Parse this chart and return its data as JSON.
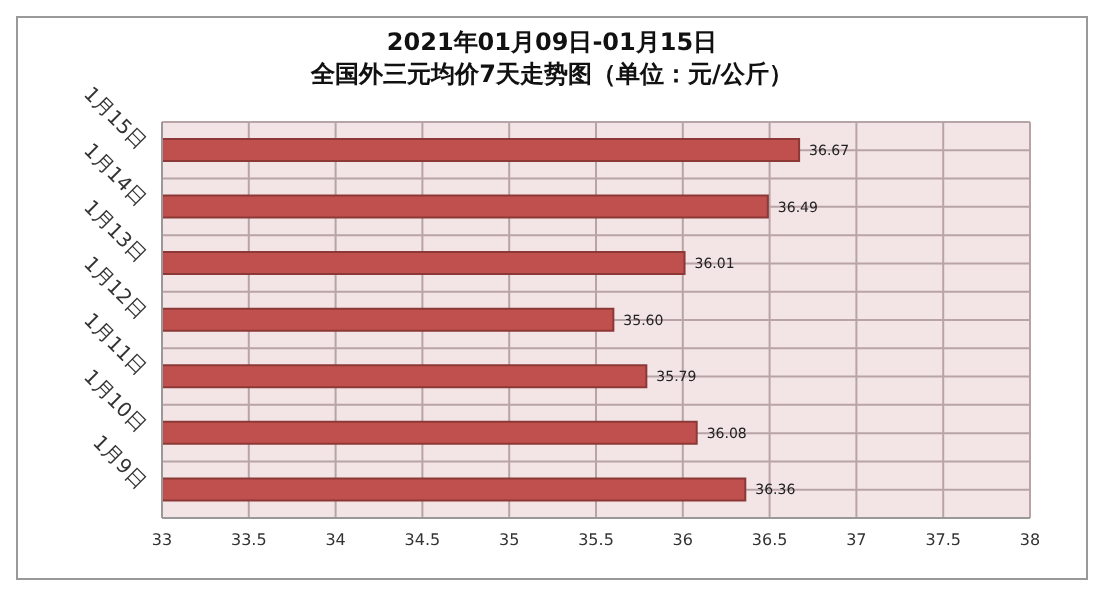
{
  "chart_data": {
    "type": "bar",
    "orientation": "horizontal",
    "title": "2021年01月09日-01月15日",
    "subtitle": "全国外三元均价7天走势图（单位：元/公斤）",
    "categories": [
      "1月15日",
      "1月14日",
      "1月13日",
      "1月12日",
      "1月11日",
      "1月10日",
      "1月9日"
    ],
    "values": [
      36.67,
      36.49,
      36.01,
      35.6,
      35.79,
      36.08,
      36.36
    ],
    "value_labels": [
      "36.67",
      "36.49",
      "36.01",
      "35.60",
      "35.79",
      "36.08",
      "36.36"
    ],
    "color": "#c0504d",
    "xlim": [
      33,
      38
    ],
    "xticks": [
      33,
      33.5,
      34,
      34.5,
      35,
      35.5,
      36,
      36.5,
      37,
      37.5,
      38
    ],
    "grid": true
  }
}
